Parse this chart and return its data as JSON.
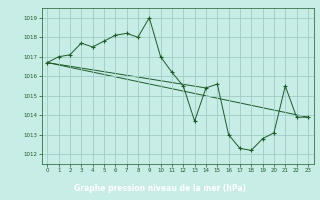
{
  "title": "Graphe pression niveau de la mer (hPa)",
  "bg_color": "#c8ece6",
  "plot_bg_color": "#c8ece6",
  "grid_color": "#a0ccc4",
  "line_color": "#1a5c28",
  "title_bg": "#2a6b3a",
  "title_fg": "#ffffff",
  "xlim": [
    -0.5,
    23.5
  ],
  "ylim": [
    1011.5,
    1019.5
  ],
  "yticks": [
    1012,
    1013,
    1014,
    1015,
    1016,
    1017,
    1018,
    1019
  ],
  "xticks": [
    0,
    1,
    2,
    3,
    4,
    5,
    6,
    7,
    8,
    9,
    10,
    11,
    12,
    13,
    14,
    15,
    16,
    17,
    18,
    19,
    20,
    21,
    22,
    23
  ],
  "series_main": {
    "x": [
      0,
      1,
      2,
      3,
      4,
      5,
      6,
      7,
      8,
      9,
      10,
      11,
      12,
      13,
      14,
      15,
      16,
      17,
      18,
      19,
      20,
      21,
      22,
      23
    ],
    "y": [
      1016.7,
      1017.0,
      1017.1,
      1017.7,
      1017.5,
      1017.8,
      1018.1,
      1018.2,
      1018.0,
      1019.0,
      1017.0,
      1016.2,
      1015.5,
      1013.7,
      1015.4,
      1015.6,
      1013.0,
      1012.3,
      1012.2,
      1012.8,
      1013.1,
      1015.5,
      1013.9,
      1013.9
    ]
  },
  "series_trend1": {
    "x": [
      0,
      23
    ],
    "y": [
      1016.7,
      1013.9
    ]
  },
  "series_trend2": {
    "x": [
      0,
      14
    ],
    "y": [
      1016.7,
      1015.4
    ]
  }
}
